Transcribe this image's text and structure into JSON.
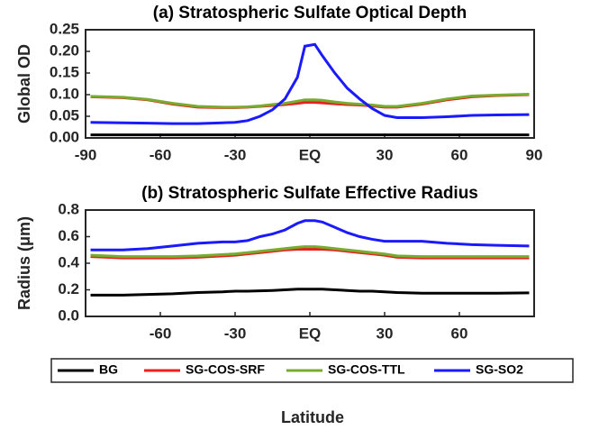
{
  "chart_data": [
    {
      "type": "line",
      "title": "(a) Stratospheric Sulfate Optical Depth",
      "ylabel": "Global OD",
      "x": [
        -88,
        -75,
        -65,
        -55,
        -45,
        -35,
        -30,
        -25,
        -20,
        -15,
        -10,
        -5,
        -2,
        2,
        5,
        10,
        15,
        20,
        25,
        30,
        35,
        45,
        55,
        65,
        75,
        88
      ],
      "xlim": [
        -90,
        90
      ],
      "xticks": [
        -90,
        -60,
        -30,
        {
          "value": 0,
          "label": "EQ"
        },
        30,
        60,
        90
      ],
      "ylim": [
        0,
        0.25
      ],
      "yticks": [
        {
          "value": 0,
          "label": "0.00"
        },
        0.05,
        {
          "value": 0.1,
          "label": "0.10"
        },
        0.15,
        {
          "value": 0.2,
          "label": "0.20"
        },
        0.25
      ],
      "legend": "bottom",
      "series": [
        {
          "name": "BG",
          "color": "#000000",
          "values": [
            0.007,
            0.007,
            0.007,
            0.007,
            0.007,
            0.007,
            0.007,
            0.007,
            0.007,
            0.007,
            0.007,
            0.007,
            0.007,
            0.007,
            0.007,
            0.007,
            0.007,
            0.007,
            0.007,
            0.007,
            0.007,
            0.007,
            0.007,
            0.007,
            0.007,
            0.007
          ]
        },
        {
          "name": "SG-COS-SRF",
          "color": "#e8201e",
          "values": [
            0.095,
            0.093,
            0.088,
            0.078,
            0.071,
            0.07,
            0.07,
            0.071,
            0.073,
            0.075,
            0.077,
            0.08,
            0.082,
            0.082,
            0.081,
            0.079,
            0.077,
            0.076,
            0.074,
            0.071,
            0.071,
            0.078,
            0.088,
            0.095,
            0.098,
            0.1
          ]
        },
        {
          "name": "SG-COS-TTL",
          "color": "#77ac30",
          "values": [
            0.096,
            0.094,
            0.089,
            0.08,
            0.073,
            0.071,
            0.071,
            0.072,
            0.074,
            0.077,
            0.08,
            0.085,
            0.088,
            0.088,
            0.087,
            0.083,
            0.08,
            0.078,
            0.076,
            0.073,
            0.073,
            0.08,
            0.09,
            0.097,
            0.099,
            0.101
          ]
        },
        {
          "name": "SG-SO2",
          "color": "#1a1aff",
          "values": [
            0.036,
            0.035,
            0.034,
            0.033,
            0.033,
            0.035,
            0.036,
            0.04,
            0.05,
            0.065,
            0.09,
            0.14,
            0.212,
            0.216,
            0.19,
            0.15,
            0.115,
            0.09,
            0.068,
            0.052,
            0.047,
            0.047,
            0.049,
            0.052,
            0.053,
            0.054
          ]
        }
      ]
    },
    {
      "type": "line",
      "title": "(b) Stratospheric Sulfate Effective Radius",
      "ylabel": "Radius (μm)",
      "xlabel": "Latitude",
      "x": [
        -88,
        -75,
        -65,
        -55,
        -45,
        -35,
        -30,
        -25,
        -20,
        -15,
        -10,
        -5,
        -2,
        2,
        5,
        10,
        15,
        20,
        25,
        30,
        35,
        45,
        55,
        65,
        75,
        88
      ],
      "xlim": [
        -90,
        90
      ],
      "xticks": [
        -60,
        -30,
        {
          "value": 0,
          "label": "EQ"
        },
        30,
        60
      ],
      "ylim": [
        0,
        0.8
      ],
      "yticks": [
        {
          "value": 0,
          "label": "0.0"
        },
        0.2,
        0.4,
        0.6,
        0.8
      ],
      "series": [
        {
          "color": "#000000",
          "values": [
            0.16,
            0.16,
            0.165,
            0.17,
            0.18,
            0.185,
            0.19,
            0.19,
            0.192,
            0.195,
            0.2,
            0.205,
            0.205,
            0.205,
            0.205,
            0.2,
            0.195,
            0.19,
            0.19,
            0.185,
            0.18,
            0.175,
            0.175,
            0.175,
            0.175,
            0.177
          ]
        },
        {
          "color": "#e8201e",
          "values": [
            0.45,
            0.44,
            0.44,
            0.44,
            0.445,
            0.455,
            0.46,
            0.47,
            0.48,
            0.49,
            0.5,
            0.505,
            0.505,
            0.505,
            0.505,
            0.5,
            0.49,
            0.48,
            0.47,
            0.46,
            0.445,
            0.44,
            0.44,
            0.44,
            0.44,
            0.44
          ]
        },
        {
          "color": "#77ac30",
          "values": [
            0.46,
            0.45,
            0.45,
            0.45,
            0.455,
            0.465,
            0.47,
            0.48,
            0.49,
            0.5,
            0.51,
            0.52,
            0.525,
            0.525,
            0.52,
            0.51,
            0.5,
            0.49,
            0.48,
            0.47,
            0.455,
            0.45,
            0.45,
            0.45,
            0.45,
            0.45
          ]
        },
        {
          "color": "#1a1aff",
          "values": [
            0.5,
            0.5,
            0.51,
            0.53,
            0.55,
            0.56,
            0.56,
            0.57,
            0.6,
            0.62,
            0.65,
            0.7,
            0.72,
            0.72,
            0.71,
            0.67,
            0.63,
            0.6,
            0.58,
            0.565,
            0.565,
            0.565,
            0.55,
            0.54,
            0.535,
            0.53
          ]
        }
      ]
    }
  ]
}
